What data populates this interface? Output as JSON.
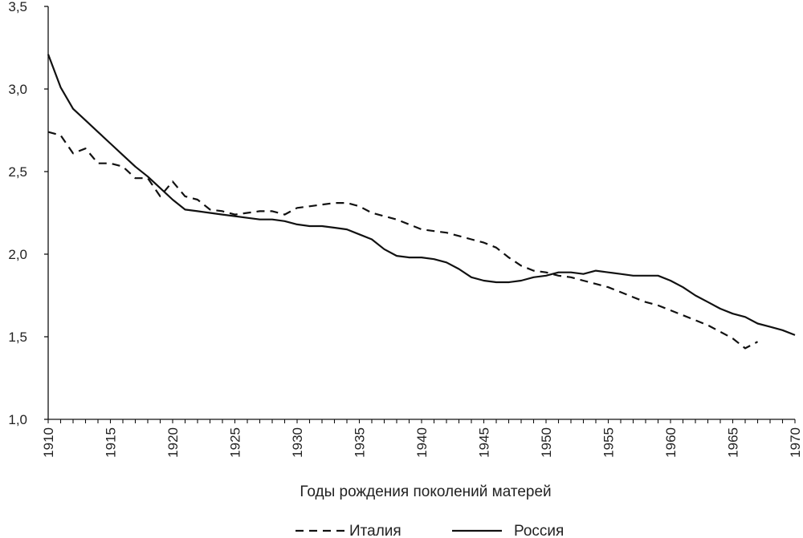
{
  "chart_data": {
    "type": "line",
    "title": "",
    "xlabel": "Годы рождения поколений матерей",
    "ylabel": "",
    "xlim": [
      1910,
      1970
    ],
    "ylim": [
      1.0,
      3.5
    ],
    "x_ticks": [
      1910,
      1915,
      1920,
      1925,
      1930,
      1935,
      1940,
      1945,
      1950,
      1955,
      1960,
      1965,
      1970
    ],
    "y_ticks": [
      1.0,
      1.5,
      2.0,
      2.5,
      3.0,
      3.5
    ],
    "y_tick_labels": [
      "1,0",
      "1,5",
      "2,0",
      "2,5",
      "3,0",
      "3,5"
    ],
    "grid": false,
    "legend_position": "bottom-center",
    "series": [
      {
        "name": "Италия",
        "style": "dashed",
        "x": [
          1910,
          1911,
          1912,
          1913,
          1914,
          1915,
          1916,
          1917,
          1918,
          1919,
          1920,
          1921,
          1922,
          1923,
          1924,
          1925,
          1926,
          1927,
          1928,
          1929,
          1930,
          1931,
          1932,
          1933,
          1934,
          1935,
          1936,
          1937,
          1938,
          1939,
          1940,
          1941,
          1942,
          1943,
          1944,
          1945,
          1946,
          1947,
          1948,
          1949,
          1950,
          1951,
          1952,
          1953,
          1954,
          1955,
          1956,
          1957,
          1958,
          1959,
          1960,
          1961,
          1962,
          1963,
          1964,
          1965,
          1966,
          1967
        ],
        "values": [
          2.74,
          2.72,
          2.61,
          2.64,
          2.55,
          2.55,
          2.53,
          2.46,
          2.46,
          2.35,
          2.44,
          2.35,
          2.33,
          2.27,
          2.26,
          2.24,
          2.25,
          2.26,
          2.26,
          2.24,
          2.28,
          2.29,
          2.3,
          2.31,
          2.31,
          2.29,
          2.25,
          2.23,
          2.21,
          2.18,
          2.15,
          2.14,
          2.13,
          2.11,
          2.09,
          2.07,
          2.04,
          1.98,
          1.93,
          1.9,
          1.89,
          1.87,
          1.86,
          1.84,
          1.82,
          1.8,
          1.77,
          1.74,
          1.71,
          1.69,
          1.66,
          1.63,
          1.6,
          1.57,
          1.53,
          1.49,
          1.43,
          1.47
        ]
      },
      {
        "name": "Россия",
        "style": "solid",
        "x": [
          1910,
          1911,
          1912,
          1913,
          1914,
          1915,
          1916,
          1917,
          1918,
          1919,
          1920,
          1921,
          1922,
          1923,
          1924,
          1925,
          1926,
          1927,
          1928,
          1929,
          1930,
          1931,
          1932,
          1933,
          1934,
          1935,
          1936,
          1937,
          1938,
          1939,
          1940,
          1941,
          1942,
          1943,
          1944,
          1945,
          1946,
          1947,
          1948,
          1949,
          1950,
          1951,
          1952,
          1953,
          1954,
          1955,
          1956,
          1957,
          1958,
          1959,
          1960,
          1961,
          1962,
          1963,
          1964,
          1965,
          1966,
          1967,
          1968,
          1969,
          1970
        ],
        "values": [
          3.21,
          3.01,
          2.88,
          2.81,
          2.74,
          2.67,
          2.6,
          2.53,
          2.47,
          2.4,
          2.33,
          2.27,
          2.26,
          2.25,
          2.24,
          2.23,
          2.22,
          2.21,
          2.21,
          2.2,
          2.18,
          2.17,
          2.17,
          2.16,
          2.15,
          2.12,
          2.09,
          2.03,
          1.99,
          1.98,
          1.98,
          1.97,
          1.95,
          1.91,
          1.86,
          1.84,
          1.83,
          1.83,
          1.84,
          1.86,
          1.87,
          1.89,
          1.89,
          1.88,
          1.9,
          1.89,
          1.88,
          1.87,
          1.87,
          1.87,
          1.84,
          1.8,
          1.75,
          1.71,
          1.67,
          1.64,
          1.62,
          1.58,
          1.56,
          1.54,
          1.51
        ]
      }
    ]
  }
}
